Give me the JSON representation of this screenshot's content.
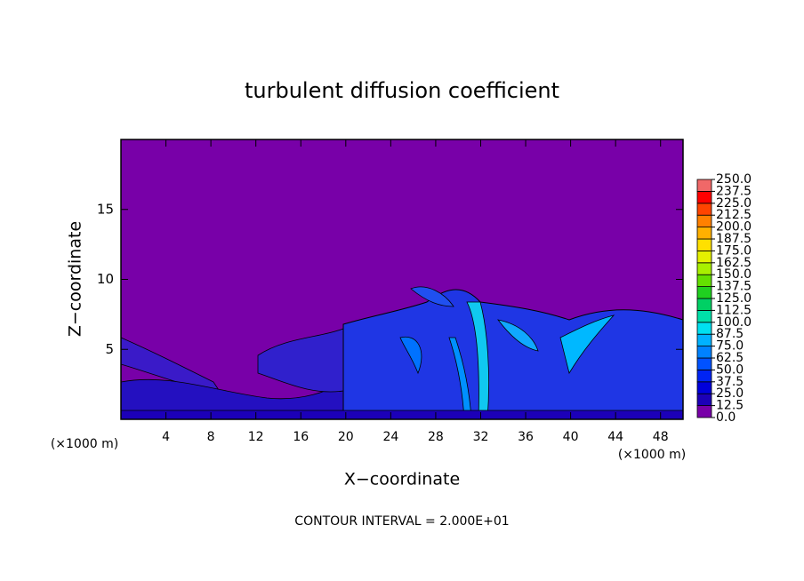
{
  "chart_data": {
    "type": "contour",
    "title": "turbulent diffusion coefficient",
    "xlabel": "X−coordinate",
    "ylabel": "Z−coordinate",
    "x_unit": "(×1000 m)",
    "footer": "CONTOUR INTERVAL = 2.000E+01",
    "xlim": [
      0,
      50
    ],
    "ylim": [
      0,
      20
    ],
    "xticks": [
      4,
      8,
      12,
      16,
      20,
      24,
      28,
      32,
      36,
      40,
      44,
      48
    ],
    "yticks": [
      5,
      10,
      15
    ],
    "colorbar": {
      "levels": [
        {
          "value": 0,
          "label": "0.0"
        },
        12.5,
        {
          "value": 25,
          "label": "25.0"
        },
        37.5,
        {
          "value": 50,
          "label": "50.0"
        },
        62.5,
        {
          "value": 75,
          "label": "75.0"
        },
        87.5,
        {
          "value": 100,
          "label": "100.0"
        },
        112.5,
        {
          "value": 125,
          "label": "125.0"
        },
        137.5,
        {
          "value": 150,
          "label": "150.0"
        },
        162.5,
        {
          "value": 175,
          "label": "175.0"
        },
        187.5,
        {
          "value": 200,
          "label": "200.0"
        },
        212.5,
        {
          "value": 225,
          "label": "225.0"
        },
        237.5,
        {
          "value": 250,
          "label": "250.0"
        }
      ],
      "colors": [
        "#7800a8",
        "#1c00b8",
        "#0000dc",
        "#0024f4",
        "#0052ff",
        "#0082ff",
        "#00b2ff",
        "#00e0f0",
        "#00e0a8",
        "#00d064",
        "#20d020",
        "#64e000",
        "#a8f000",
        "#e4f000",
        "#ffe000",
        "#ffb000",
        "#ff8000",
        "#ff4400",
        "#ff0000",
        "#f06868"
      ]
    }
  }
}
